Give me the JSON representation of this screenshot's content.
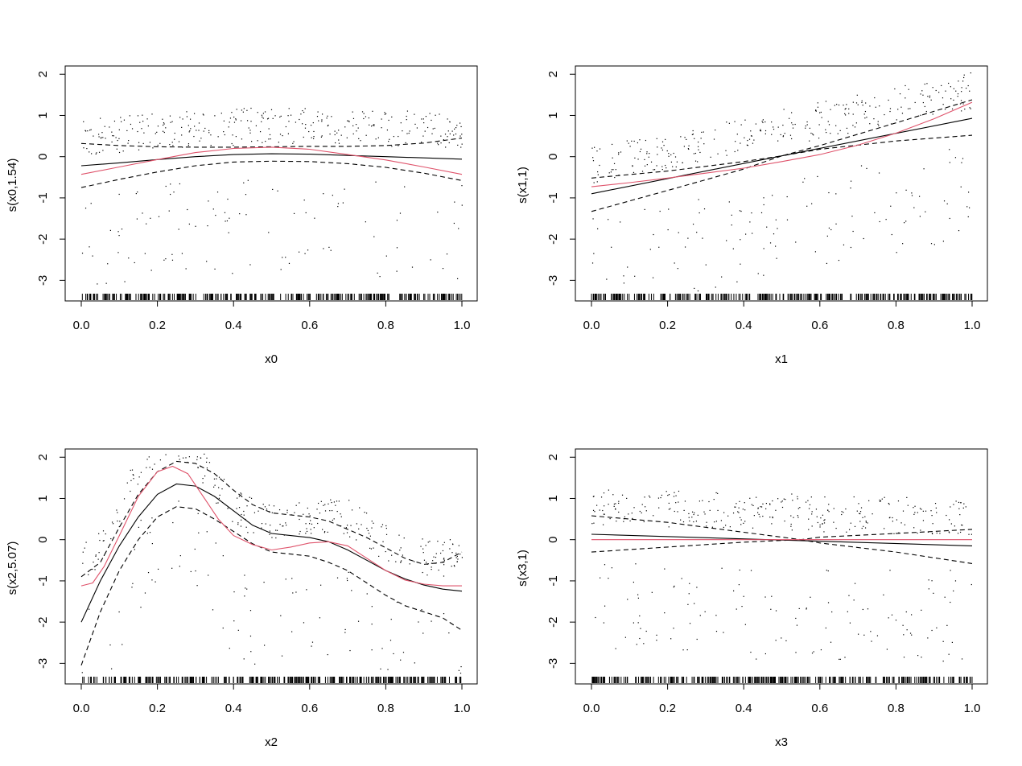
{
  "figure": {
    "background": "#ffffff",
    "smooth_color": "#000000",
    "truth_color": "#df536b"
  },
  "chart_data": [
    {
      "type": "line",
      "title": "",
      "xlabel": "x0",
      "ylabel": "s(x0,1.54)",
      "xlim": [
        0,
        1
      ],
      "ylim": [
        -3.5,
        2.2
      ],
      "xticks": [
        "0.0",
        "0.2",
        "0.4",
        "0.6",
        "0.8",
        "1.0"
      ],
      "yticks": [
        "2",
        "1",
        "0",
        "-1",
        "-2",
        "-3"
      ],
      "grid": false,
      "legend": "none",
      "series": [
        {
          "name": "estimate",
          "style": "solid",
          "color": "#000000",
          "x": [
            0,
            0.1,
            0.2,
            0.3,
            0.4,
            0.5,
            0.6,
            0.7,
            0.8,
            0.9,
            1.0
          ],
          "y": [
            -0.22,
            -0.15,
            -0.07,
            0.0,
            0.05,
            0.07,
            0.06,
            0.03,
            0.0,
            -0.03,
            -0.06
          ]
        },
        {
          "name": "upper CI",
          "style": "dashed",
          "color": "#000000",
          "x": [
            0,
            0.1,
            0.2,
            0.3,
            0.4,
            0.5,
            0.6,
            0.7,
            0.8,
            0.9,
            1.0
          ],
          "y": [
            0.32,
            0.27,
            0.24,
            0.23,
            0.23,
            0.24,
            0.25,
            0.25,
            0.27,
            0.33,
            0.45
          ]
        },
        {
          "name": "lower CI",
          "style": "dashed",
          "color": "#000000",
          "x": [
            0,
            0.1,
            0.2,
            0.3,
            0.4,
            0.5,
            0.6,
            0.7,
            0.8,
            0.9,
            1.0
          ],
          "y": [
            -0.75,
            -0.55,
            -0.37,
            -0.22,
            -0.13,
            -0.11,
            -0.12,
            -0.17,
            -0.26,
            -0.4,
            -0.58
          ]
        },
        {
          "name": "true function",
          "style": "solid",
          "color": "#df536b",
          "x": [
            0,
            0.1,
            0.2,
            0.3,
            0.4,
            0.5,
            0.6,
            0.7,
            0.8,
            0.9,
            1.0
          ],
          "y": [
            -0.43,
            -0.25,
            -0.07,
            0.1,
            0.2,
            0.23,
            0.18,
            0.05,
            -0.08,
            -0.25,
            -0.43
          ]
        }
      ],
      "partial_residuals": {
        "center": "mixed",
        "note": "scattered dots"
      },
      "rug": true
    },
    {
      "type": "line",
      "title": "",
      "xlabel": "x1",
      "ylabel": "s(x1,1)",
      "xlim": [
        0,
        1
      ],
      "ylim": [
        -3.5,
        2.2
      ],
      "xticks": [
        "0.0",
        "0.2",
        "0.4",
        "0.6",
        "0.8",
        "1.0"
      ],
      "yticks": [
        "2",
        "1",
        "0",
        "-1",
        "-2",
        "-3"
      ],
      "grid": false,
      "legend": "none",
      "series": [
        {
          "name": "estimate",
          "style": "solid",
          "color": "#000000",
          "x": [
            0,
            0.5,
            1.0
          ],
          "y": [
            -0.9,
            0.02,
            0.93
          ]
        },
        {
          "name": "upper CI",
          "style": "dashed",
          "color": "#000000",
          "x": [
            0,
            0.2,
            0.4,
            0.5,
            0.6,
            0.8,
            1.0
          ],
          "y": [
            -0.52,
            -0.35,
            -0.12,
            0.02,
            0.27,
            0.82,
            1.38
          ]
        },
        {
          "name": "lower CI",
          "style": "dashed",
          "color": "#000000",
          "x": [
            0,
            0.2,
            0.4,
            0.5,
            0.6,
            0.8,
            1.0
          ],
          "y": [
            -1.33,
            -0.82,
            -0.3,
            0.02,
            0.18,
            0.38,
            0.52
          ]
        },
        {
          "name": "true function",
          "style": "solid",
          "color": "#df536b",
          "x": [
            0,
            0.1,
            0.2,
            0.3,
            0.4,
            0.5,
            0.6,
            0.7,
            0.8,
            0.9,
            1.0
          ],
          "y": [
            -0.73,
            -0.63,
            -0.52,
            -0.4,
            -0.28,
            -0.12,
            0.05,
            0.28,
            0.57,
            0.92,
            1.32
          ]
        }
      ],
      "partial_residuals": {
        "center": "linear",
        "note": "scattered dots"
      },
      "rug": true
    },
    {
      "type": "line",
      "title": "",
      "xlabel": "x2",
      "ylabel": "s(x2,5.07)",
      "xlim": [
        0,
        1
      ],
      "ylim": [
        -3.5,
        2.2
      ],
      "xticks": [
        "0.0",
        "0.2",
        "0.4",
        "0.6",
        "0.8",
        "1.0"
      ],
      "yticks": [
        "2",
        "1",
        "0",
        "-1",
        "-2",
        "-3"
      ],
      "grid": false,
      "legend": "none",
      "series": [
        {
          "name": "estimate",
          "style": "solid",
          "color": "#000000",
          "x": [
            0,
            0.05,
            0.1,
            0.15,
            0.2,
            0.25,
            0.3,
            0.35,
            0.4,
            0.45,
            0.5,
            0.55,
            0.6,
            0.65,
            0.7,
            0.75,
            0.8,
            0.85,
            0.9,
            0.95,
            1.0
          ],
          "y": [
            -2.0,
            -1.0,
            -0.15,
            0.55,
            1.1,
            1.35,
            1.3,
            1.05,
            0.7,
            0.35,
            0.15,
            0.1,
            0.05,
            -0.05,
            -0.25,
            -0.5,
            -0.75,
            -0.95,
            -1.1,
            -1.2,
            -1.25
          ]
        },
        {
          "name": "upper CI",
          "style": "dashed",
          "color": "#000000",
          "x": [
            0,
            0.05,
            0.1,
            0.15,
            0.2,
            0.25,
            0.3,
            0.35,
            0.4,
            0.45,
            0.5,
            0.55,
            0.6,
            0.65,
            0.7,
            0.75,
            0.8,
            0.85,
            0.9,
            0.95,
            1.0
          ],
          "y": [
            -0.9,
            -0.55,
            0.3,
            1.1,
            1.65,
            1.9,
            1.85,
            1.6,
            1.2,
            0.85,
            0.65,
            0.6,
            0.55,
            0.45,
            0.25,
            0.05,
            -0.2,
            -0.45,
            -0.6,
            -0.55,
            -0.3
          ]
        },
        {
          "name": "lower CI",
          "style": "dashed",
          "color": "#000000",
          "x": [
            0,
            0.05,
            0.1,
            0.15,
            0.2,
            0.25,
            0.3,
            0.35,
            0.4,
            0.45,
            0.5,
            0.55,
            0.6,
            0.65,
            0.7,
            0.75,
            0.8,
            0.85,
            0.9,
            0.95,
            1.0
          ],
          "y": [
            -3.05,
            -1.75,
            -0.75,
            0.0,
            0.55,
            0.8,
            0.75,
            0.5,
            0.2,
            -0.1,
            -0.3,
            -0.35,
            -0.4,
            -0.55,
            -0.75,
            -1.05,
            -1.35,
            -1.6,
            -1.75,
            -1.9,
            -2.2
          ]
        },
        {
          "name": "true function",
          "style": "solid",
          "color": "#df536b",
          "x": [
            0,
            0.03,
            0.06,
            0.1,
            0.15,
            0.2,
            0.24,
            0.28,
            0.32,
            0.36,
            0.4,
            0.45,
            0.5,
            0.55,
            0.6,
            0.65,
            0.7,
            0.75,
            0.8,
            0.85,
            0.9,
            0.95,
            1.0
          ],
          "y": [
            -1.12,
            -1.05,
            -0.65,
            0.1,
            1.05,
            1.65,
            1.78,
            1.6,
            1.05,
            0.5,
            0.1,
            -0.12,
            -0.25,
            -0.18,
            -0.08,
            -0.05,
            -0.15,
            -0.45,
            -0.75,
            -0.98,
            -1.08,
            -1.12,
            -1.12
          ]
        }
      ],
      "partial_residuals": {
        "center": "peaked",
        "note": "scattered dots"
      },
      "rug": true
    },
    {
      "type": "line",
      "title": "",
      "xlabel": "x3",
      "ylabel": "s(x3,1)",
      "xlim": [
        0,
        1
      ],
      "ylim": [
        -3.5,
        2.2
      ],
      "xticks": [
        "0.0",
        "0.2",
        "0.4",
        "0.6",
        "0.8",
        "1.0"
      ],
      "yticks": [
        "2",
        "1",
        "0",
        "-1",
        "-2",
        "-3"
      ],
      "grid": false,
      "legend": "none",
      "series": [
        {
          "name": "estimate",
          "style": "solid",
          "color": "#000000",
          "x": [
            0,
            1.0
          ],
          "y": [
            0.13,
            -0.15
          ]
        },
        {
          "name": "upper CI",
          "style": "dashed",
          "color": "#000000",
          "x": [
            0,
            0.2,
            0.4,
            0.5,
            0.55,
            0.6,
            0.8,
            1.0
          ],
          "y": [
            0.58,
            0.42,
            0.18,
            0.06,
            0.0,
            0.06,
            0.15,
            0.25
          ]
        },
        {
          "name": "lower CI",
          "style": "dashed",
          "color": "#000000",
          "x": [
            0,
            0.2,
            0.4,
            0.5,
            0.55,
            0.6,
            0.8,
            1.0
          ],
          "y": [
            -0.3,
            -0.18,
            -0.06,
            -0.02,
            0.0,
            -0.08,
            -0.3,
            -0.58
          ]
        },
        {
          "name": "true function",
          "style": "solid",
          "color": "#df536b",
          "x": [
            0,
            1.0
          ],
          "y": [
            0.0,
            0.0
          ]
        }
      ],
      "partial_residuals": {
        "center": "flat",
        "note": "scattered dots"
      },
      "rug": true
    }
  ]
}
